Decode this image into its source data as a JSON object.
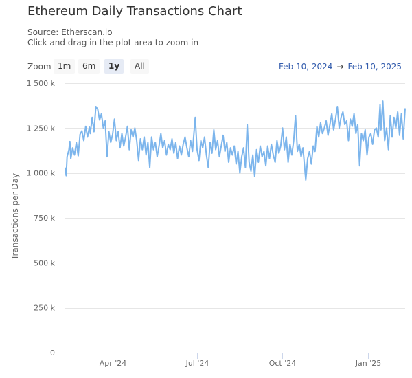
{
  "header": {
    "title": "Ethereum Daily Transactions Chart",
    "source": "Source: Etherscan.io",
    "hint": "Click and drag in the plot area to zoom in"
  },
  "zoom": {
    "label": "Zoom",
    "buttons": [
      "1m",
      "6m",
      "1y",
      "All"
    ],
    "active": "1y"
  },
  "range": {
    "from": "Feb 10, 2024",
    "arrow": "→",
    "to": "Feb 10, 2025"
  },
  "colors": {
    "line": "#7cb5ec",
    "grid": "#e6e6e6",
    "axis": "#ccd6eb"
  },
  "chart_data": {
    "type": "line",
    "ylabel": "Transactions per Day",
    "ylim": [
      0,
      1500000
    ],
    "yticks": [
      0,
      250000,
      500000,
      750000,
      1000000,
      1250000,
      1500000
    ],
    "ytick_labels": [
      "0",
      "250 k",
      "500 k",
      "750 k",
      "1 000 k",
      "1 250 k",
      "1 500 k"
    ],
    "xlim": [
      "2024-02-10",
      "2025-02-10"
    ],
    "xticks": [
      "2024-04-01",
      "2024-07-01",
      "2024-10-01",
      "2025-01-01"
    ],
    "xtick_labels": [
      "Apr '24",
      "Jul '24",
      "Oct '24",
      "Jan '25"
    ],
    "grid": true,
    "legend": "none",
    "series": [
      {
        "points": [
          [
            "2024-02-10",
            1030000
          ],
          [
            "2024-02-11",
            985000
          ],
          [
            "2024-02-12",
            1090000
          ],
          [
            "2024-02-14",
            1130000
          ],
          [
            "2024-02-15",
            1175000
          ],
          [
            "2024-02-16",
            1080000
          ],
          [
            "2024-02-18",
            1140000
          ],
          [
            "2024-02-20",
            1100000
          ],
          [
            "2024-02-22",
            1170000
          ],
          [
            "2024-02-24",
            1095000
          ],
          [
            "2024-02-26",
            1215000
          ],
          [
            "2024-02-28",
            1235000
          ],
          [
            "2024-03-01",
            1180000
          ],
          [
            "2024-03-03",
            1260000
          ],
          [
            "2024-03-05",
            1200000
          ],
          [
            "2024-03-07",
            1255000
          ],
          [
            "2024-03-08",
            1220000
          ],
          [
            "2024-03-10",
            1310000
          ],
          [
            "2024-03-12",
            1230000
          ],
          [
            "2024-03-14",
            1370000
          ],
          [
            "2024-03-16",
            1355000
          ],
          [
            "2024-03-18",
            1295000
          ],
          [
            "2024-03-20",
            1330000
          ],
          [
            "2024-03-22",
            1250000
          ],
          [
            "2024-03-24",
            1290000
          ],
          [
            "2024-03-26",
            1090000
          ],
          [
            "2024-03-28",
            1230000
          ],
          [
            "2024-03-30",
            1170000
          ],
          [
            "2024-04-01",
            1215000
          ],
          [
            "2024-04-03",
            1300000
          ],
          [
            "2024-04-05",
            1180000
          ],
          [
            "2024-04-07",
            1230000
          ],
          [
            "2024-04-09",
            1140000
          ],
          [
            "2024-04-11",
            1220000
          ],
          [
            "2024-04-13",
            1150000
          ],
          [
            "2024-04-15",
            1200000
          ],
          [
            "2024-04-17",
            1260000
          ],
          [
            "2024-04-19",
            1130000
          ],
          [
            "2024-04-21",
            1240000
          ],
          [
            "2024-04-23",
            1200000
          ],
          [
            "2024-04-25",
            1250000
          ],
          [
            "2024-04-27",
            1180000
          ],
          [
            "2024-04-29",
            1070000
          ],
          [
            "2024-05-01",
            1190000
          ],
          [
            "2024-05-03",
            1130000
          ],
          [
            "2024-05-05",
            1200000
          ],
          [
            "2024-05-07",
            1100000
          ],
          [
            "2024-05-09",
            1170000
          ],
          [
            "2024-05-11",
            1030000
          ],
          [
            "2024-05-13",
            1200000
          ],
          [
            "2024-05-15",
            1130000
          ],
          [
            "2024-05-17",
            1170000
          ],
          [
            "2024-05-19",
            1090000
          ],
          [
            "2024-05-21",
            1150000
          ],
          [
            "2024-05-23",
            1220000
          ],
          [
            "2024-05-25",
            1140000
          ],
          [
            "2024-05-27",
            1180000
          ],
          [
            "2024-05-29",
            1100000
          ],
          [
            "2024-05-31",
            1160000
          ],
          [
            "2024-06-02",
            1130000
          ],
          [
            "2024-06-04",
            1190000
          ],
          [
            "2024-06-06",
            1110000
          ],
          [
            "2024-06-08",
            1170000
          ],
          [
            "2024-06-10",
            1080000
          ],
          [
            "2024-06-12",
            1150000
          ],
          [
            "2024-06-14",
            1100000
          ],
          [
            "2024-06-16",
            1160000
          ],
          [
            "2024-06-18",
            1200000
          ],
          [
            "2024-06-20",
            1140000
          ],
          [
            "2024-06-22",
            1090000
          ],
          [
            "2024-06-24",
            1180000
          ],
          [
            "2024-06-26",
            1120000
          ],
          [
            "2024-06-29",
            1310000
          ],
          [
            "2024-07-01",
            1130000
          ],
          [
            "2024-07-03",
            1070000
          ],
          [
            "2024-07-05",
            1180000
          ],
          [
            "2024-07-07",
            1140000
          ],
          [
            "2024-07-09",
            1200000
          ],
          [
            "2024-07-11",
            1100000
          ],
          [
            "2024-07-13",
            1030000
          ],
          [
            "2024-07-15",
            1170000
          ],
          [
            "2024-07-17",
            1110000
          ],
          [
            "2024-07-19",
            1240000
          ],
          [
            "2024-07-21",
            1130000
          ],
          [
            "2024-07-23",
            1180000
          ],
          [
            "2024-07-25",
            1090000
          ],
          [
            "2024-07-27",
            1150000
          ],
          [
            "2024-07-29",
            1210000
          ],
          [
            "2024-07-31",
            1120000
          ],
          [
            "2024-08-02",
            1170000
          ],
          [
            "2024-08-04",
            1060000
          ],
          [
            "2024-08-06",
            1140000
          ],
          [
            "2024-08-08",
            1100000
          ],
          [
            "2024-08-10",
            1150000
          ],
          [
            "2024-08-12",
            1050000
          ],
          [
            "2024-08-14",
            1120000
          ],
          [
            "2024-08-16",
            1000000
          ],
          [
            "2024-08-18",
            1090000
          ],
          [
            "2024-08-20",
            1140000
          ],
          [
            "2024-08-22",
            1030000
          ],
          [
            "2024-08-24",
            1270000
          ],
          [
            "2024-08-26",
            1060000
          ],
          [
            "2024-08-28",
            1010000
          ],
          [
            "2024-08-30",
            1100000
          ],
          [
            "2024-09-01",
            980000
          ],
          [
            "2024-09-03",
            1130000
          ],
          [
            "2024-09-05",
            1060000
          ],
          [
            "2024-09-07",
            1150000
          ],
          [
            "2024-09-09",
            1090000
          ],
          [
            "2024-09-11",
            1120000
          ],
          [
            "2024-09-13",
            1040000
          ],
          [
            "2024-09-15",
            1150000
          ],
          [
            "2024-09-17",
            1080000
          ],
          [
            "2024-09-19",
            1160000
          ],
          [
            "2024-09-21",
            1100000
          ],
          [
            "2024-09-23",
            1060000
          ],
          [
            "2024-09-25",
            1180000
          ],
          [
            "2024-09-27",
            1110000
          ],
          [
            "2024-09-29",
            1150000
          ],
          [
            "2024-10-01",
            1250000
          ],
          [
            "2024-10-03",
            1130000
          ],
          [
            "2024-10-05",
            1200000
          ],
          [
            "2024-10-07",
            1060000
          ],
          [
            "2024-10-09",
            1160000
          ],
          [
            "2024-10-11",
            1100000
          ],
          [
            "2024-10-13",
            1180000
          ],
          [
            "2024-10-15",
            1320000
          ],
          [
            "2024-10-17",
            1120000
          ],
          [
            "2024-10-19",
            1160000
          ],
          [
            "2024-10-21",
            1090000
          ],
          [
            "2024-10-23",
            1140000
          ],
          [
            "2024-10-26",
            960000
          ],
          [
            "2024-10-28",
            1080000
          ],
          [
            "2024-10-30",
            1120000
          ],
          [
            "2024-11-01",
            1050000
          ],
          [
            "2024-11-03",
            1150000
          ],
          [
            "2024-11-05",
            1120000
          ],
          [
            "2024-11-07",
            1260000
          ],
          [
            "2024-11-09",
            1200000
          ],
          [
            "2024-11-11",
            1280000
          ],
          [
            "2024-11-13",
            1220000
          ],
          [
            "2024-11-15",
            1250000
          ],
          [
            "2024-11-17",
            1290000
          ],
          [
            "2024-11-19",
            1210000
          ],
          [
            "2024-11-21",
            1270000
          ],
          [
            "2024-11-23",
            1330000
          ],
          [
            "2024-11-25",
            1240000
          ],
          [
            "2024-11-27",
            1300000
          ],
          [
            "2024-11-29",
            1370000
          ],
          [
            "2024-12-01",
            1250000
          ],
          [
            "2024-12-03",
            1310000
          ],
          [
            "2024-12-05",
            1340000
          ],
          [
            "2024-12-07",
            1270000
          ],
          [
            "2024-12-09",
            1290000
          ],
          [
            "2024-12-11",
            1180000
          ],
          [
            "2024-12-13",
            1300000
          ],
          [
            "2024-12-15",
            1260000
          ],
          [
            "2024-12-17",
            1330000
          ],
          [
            "2024-12-19",
            1220000
          ],
          [
            "2024-12-21",
            1270000
          ],
          [
            "2024-12-23",
            1040000
          ],
          [
            "2024-12-25",
            1220000
          ],
          [
            "2024-12-27",
            1180000
          ],
          [
            "2024-12-29",
            1240000
          ],
          [
            "2024-12-31",
            1100000
          ],
          [
            "2025-01-02",
            1200000
          ],
          [
            "2025-01-04",
            1220000
          ],
          [
            "2025-01-06",
            1160000
          ],
          [
            "2025-01-08",
            1240000
          ],
          [
            "2025-01-10",
            1250000
          ],
          [
            "2025-01-12",
            1200000
          ],
          [
            "2025-01-14",
            1380000
          ],
          [
            "2025-01-15",
            1240000
          ],
          [
            "2025-01-17",
            1400000
          ],
          [
            "2025-01-19",
            1180000
          ],
          [
            "2025-01-21",
            1250000
          ],
          [
            "2025-01-23",
            1130000
          ],
          [
            "2025-01-25",
            1320000
          ],
          [
            "2025-01-27",
            1200000
          ],
          [
            "2025-01-29",
            1310000
          ],
          [
            "2025-01-31",
            1250000
          ],
          [
            "2025-02-02",
            1340000
          ],
          [
            "2025-02-04",
            1210000
          ],
          [
            "2025-02-06",
            1330000
          ],
          [
            "2025-02-08",
            1190000
          ],
          [
            "2025-02-10",
            1360000
          ]
        ]
      }
    ]
  }
}
